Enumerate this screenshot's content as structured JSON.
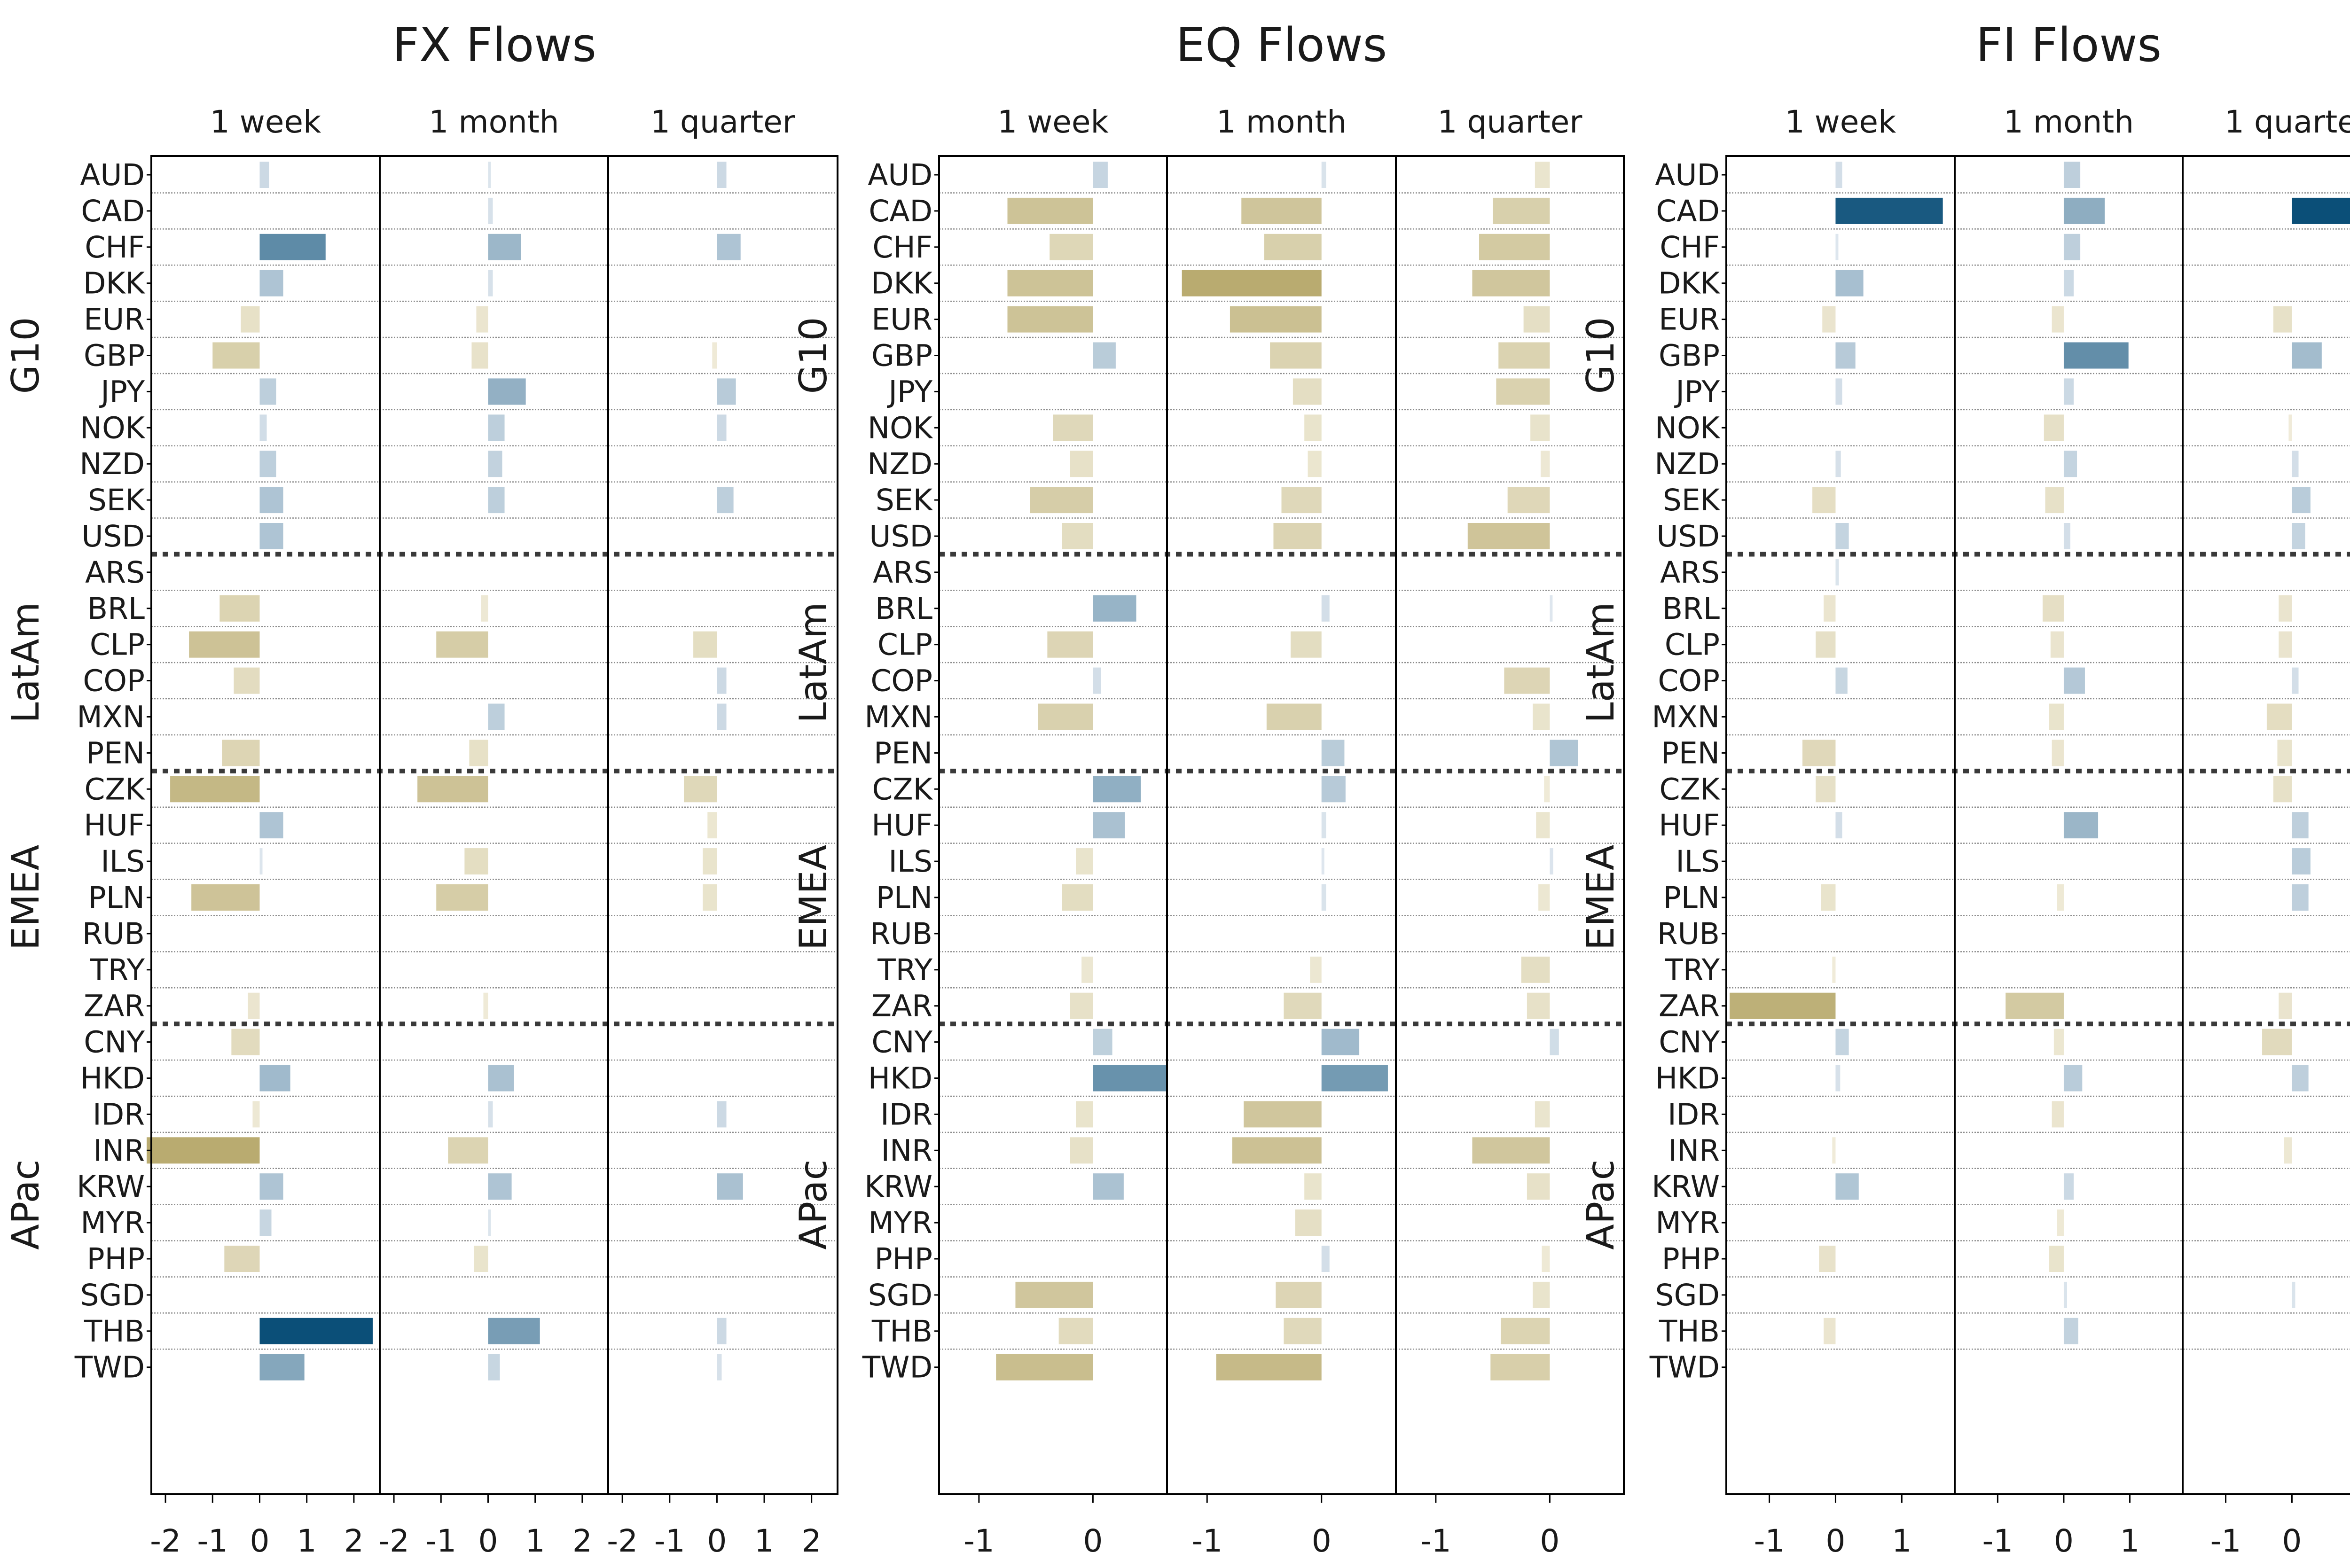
{
  "chart_data": {
    "type": "bar",
    "orientation": "horizontal",
    "panels": [
      {
        "title": "FX Flows",
        "xlim": [
          -2.3,
          2.55
        ],
        "xticks": [
          -2,
          -1,
          0,
          1,
          2
        ],
        "xtick_labels": [
          "-2",
          "-1",
          "0",
          "1",
          "2"
        ]
      },
      {
        "title": "EQ Flows",
        "xlim": [
          -1.35,
          0.65
        ],
        "xticks": [
          -1,
          0
        ],
        "xtick_labels": [
          "-1",
          "0"
        ]
      },
      {
        "title": "FI Flows",
        "xlim": [
          -1.65,
          1.8
        ],
        "xticks": [
          -1,
          0,
          1
        ],
        "xtick_labels": [
          "-1",
          "0",
          "1"
        ]
      }
    ],
    "horizons": [
      "1 week",
      "1 month",
      "1 quarter"
    ],
    "regions": [
      {
        "name": "G10",
        "currencies": [
          "AUD",
          "CAD",
          "CHF",
          "DKK",
          "EUR",
          "GBP",
          "JPY",
          "NOK",
          "NZD",
          "SEK",
          "USD"
        ]
      },
      {
        "name": "LatAm",
        "currencies": [
          "ARS",
          "BRL",
          "CLP",
          "COP",
          "MXN",
          "PEN"
        ]
      },
      {
        "name": "EMEA",
        "currencies": [
          "CZK",
          "HUF",
          "ILS",
          "PLN",
          "RUB",
          "TRY",
          "ZAR"
        ]
      },
      {
        "name": "APac",
        "currencies": [
          "CNY",
          "HKD",
          "IDR",
          "INR",
          "KRW",
          "MYR",
          "PHP",
          "SGD",
          "THB",
          "TWD"
        ]
      }
    ],
    "currencies": [
      "AUD",
      "CAD",
      "CHF",
      "DKK",
      "EUR",
      "GBP",
      "JPY",
      "NOK",
      "NZD",
      "SEK",
      "USD",
      "ARS",
      "BRL",
      "CLP",
      "COP",
      "MXN",
      "PEN",
      "CZK",
      "HUF",
      "ILS",
      "PLN",
      "RUB",
      "TRY",
      "ZAR",
      "CNY",
      "HKD",
      "IDR",
      "INR",
      "KRW",
      "MYR",
      "PHP",
      "SGD",
      "THB",
      "TWD"
    ],
    "values": {
      "FX Flows": {
        "1 week": [
          0.2,
          0.0,
          1.4,
          0.5,
          -0.4,
          -1.0,
          0.35,
          0.15,
          0.35,
          0.5,
          0.5,
          0.0,
          -0.85,
          -1.5,
          -0.55,
          0.0,
          -0.8,
          -1.9,
          0.5,
          0.05,
          -1.45,
          0.0,
          0.0,
          -0.25,
          -0.6,
          0.65,
          -0.15,
          -2.4,
          0.5,
          0.25,
          -0.75,
          0.0,
          2.4,
          0.95
        ],
        "1 month": [
          0.05,
          0.1,
          0.7,
          0.1,
          -0.25,
          -0.35,
          0.8,
          0.35,
          0.3,
          0.35,
          0.0,
          0.0,
          -0.15,
          -1.1,
          0.0,
          0.35,
          -0.4,
          -1.5,
          0.0,
          -0.5,
          -1.1,
          0.0,
          0.0,
          -0.1,
          0.0,
          0.55,
          0.1,
          -0.85,
          0.5,
          0.05,
          -0.3,
          0.0,
          1.1,
          0.25
        ],
        "1 quarter": [
          0.2,
          0.0,
          0.5,
          0.0,
          0.0,
          -0.1,
          0.4,
          0.2,
          0.0,
          0.35,
          0.0,
          0.0,
          0.0,
          -0.5,
          0.2,
          0.2,
          0.0,
          -0.7,
          -0.2,
          -0.3,
          -0.3,
          0.0,
          0.0,
          0.0,
          0.0,
          0.0,
          0.2,
          0.0,
          0.55,
          0.0,
          0.0,
          0.0,
          0.2,
          0.1
        ]
      },
      "EQ Flows": {
        "1 week": [
          0.13,
          -0.75,
          -0.38,
          -0.75,
          -0.75,
          0.2,
          0.0,
          -0.35,
          -0.2,
          -0.55,
          -0.27,
          0.0,
          0.38,
          -0.4,
          0.07,
          -0.48,
          0.0,
          0.42,
          0.28,
          -0.15,
          -0.27,
          0.0,
          -0.1,
          -0.2,
          0.17,
          0.65,
          -0.15,
          -0.2,
          0.27,
          0.0,
          0.0,
          -0.68,
          -0.3,
          -0.85
        ],
        "1 month": [
          0.04,
          -0.7,
          -0.5,
          -1.22,
          -0.8,
          -0.45,
          -0.25,
          -0.15,
          -0.12,
          -0.35,
          -0.42,
          0.0,
          0.07,
          -0.27,
          0.0,
          -0.48,
          0.2,
          0.21,
          0.04,
          0.02,
          0.04,
          0.0,
          -0.1,
          -0.33,
          0.33,
          0.58,
          -0.68,
          -0.78,
          -0.15,
          -0.23,
          0.07,
          -0.4,
          -0.33,
          -0.92
        ],
        "1 quarter": [
          -0.13,
          -0.5,
          -0.62,
          -0.68,
          -0.23,
          -0.45,
          -0.47,
          -0.17,
          -0.08,
          -0.37,
          -0.72,
          0.0,
          0.02,
          0.0,
          -0.4,
          -0.15,
          0.25,
          -0.05,
          -0.12,
          0.03,
          -0.1,
          0.0,
          -0.25,
          -0.2,
          0.08,
          0.0,
          -0.13,
          -0.68,
          -0.2,
          0.0,
          -0.07,
          -0.15,
          -0.43,
          -0.52
        ]
      },
      "FI Flows": {
        "1 week": [
          0.1,
          1.62,
          0.03,
          0.42,
          -0.2,
          0.3,
          0.1,
          0.0,
          0.08,
          -0.35,
          0.2,
          0.05,
          -0.18,
          -0.3,
          0.18,
          0.0,
          -0.5,
          -0.3,
          0.1,
          0.0,
          -0.22,
          0.0,
          -0.05,
          -1.6,
          0.2,
          0.07,
          0.0,
          -0.05,
          0.35,
          0.0,
          -0.25,
          0.0,
          -0.18,
          0.0
        ],
        "1 month": [
          0.25,
          0.62,
          0.25,
          0.15,
          -0.18,
          0.98,
          0.15,
          -0.3,
          0.2,
          -0.28,
          0.1,
          0.0,
          -0.32,
          -0.2,
          0.32,
          -0.22,
          -0.18,
          0.0,
          0.52,
          0.0,
          -0.1,
          0.0,
          0.0,
          -0.88,
          -0.15,
          0.28,
          -0.18,
          0.0,
          0.15,
          -0.1,
          -0.22,
          0.05,
          0.22,
          0.0
        ],
        "1 quarter": [
          0.0,
          1.75,
          0.0,
          0.0,
          -0.28,
          0.45,
          0.0,
          -0.05,
          0.1,
          0.28,
          0.2,
          0.0,
          -0.2,
          -0.2,
          0.1,
          -0.38,
          -0.22,
          -0.28,
          0.25,
          0.28,
          0.25,
          0.0,
          0.0,
          -0.2,
          -0.45,
          0.25,
          0.0,
          -0.12,
          0.0,
          0.0,
          0.0,
          0.05,
          0.0,
          0.0
        ]
      }
    },
    "colors": {
      "positive_strong": "#0b4f78",
      "positive_light": "#e3eaf1",
      "negative_strong": "#b9ab70",
      "negative_light": "#f2eedd",
      "frame": "#000000",
      "separator": "#3a3a3a",
      "row_grid": "#8c8c8c"
    }
  }
}
